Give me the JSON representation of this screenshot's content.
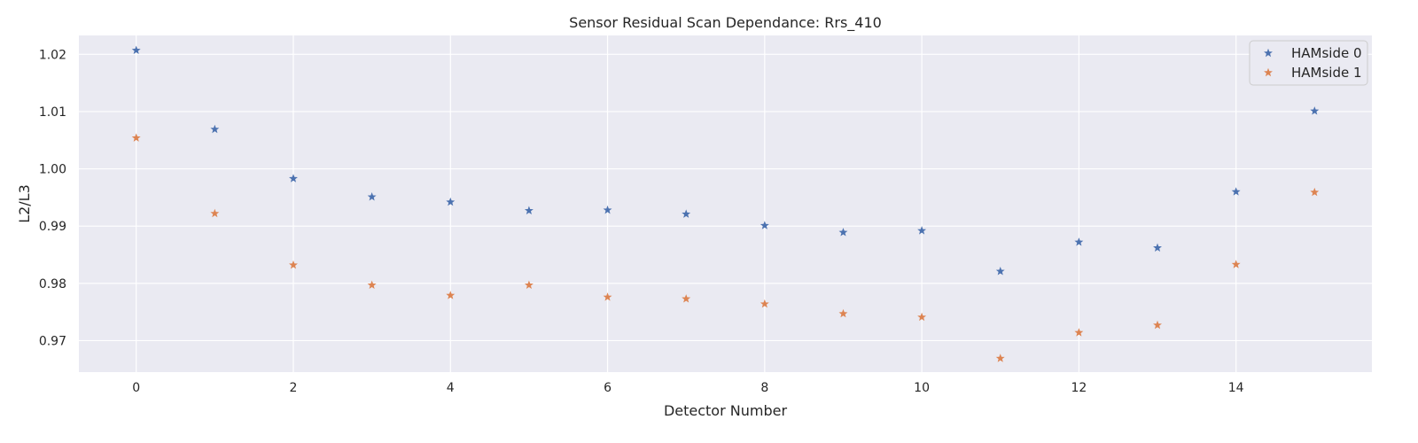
{
  "chart_data": {
    "type": "scatter",
    "title": "Sensor Residual Scan Dependance: Rrs_410",
    "xlabel": "Detector Number",
    "ylabel": "L2/L3",
    "xlim": [
      -0.73,
      15.73
    ],
    "ylim": [
      0.9645,
      1.0233
    ],
    "xticks": [
      0,
      2,
      4,
      6,
      8,
      10,
      12,
      14
    ],
    "yticks": [
      0.97,
      0.98,
      0.99,
      1.0,
      1.01,
      1.02
    ],
    "ytick_labels": [
      "0.97",
      "0.98",
      "0.99",
      "1.00",
      "1.01",
      "1.02"
    ],
    "grid": true,
    "marker": "star",
    "legend_position": "top-right",
    "x": [
      0,
      1,
      2,
      3,
      4,
      5,
      6,
      7,
      8,
      9,
      10,
      11,
      12,
      13,
      14,
      15
    ],
    "series": [
      {
        "name": "HAMside 0",
        "color": "#4c72b0",
        "values": [
          1.0207,
          1.0069,
          0.9983,
          0.9951,
          0.9942,
          0.9927,
          0.9928,
          0.9921,
          0.9901,
          0.9889,
          0.9892,
          0.9821,
          0.9872,
          0.9862,
          0.996,
          1.0101
        ]
      },
      {
        "name": "HAMside 1",
        "color": "#dd8452",
        "values": [
          1.0054,
          0.9922,
          0.9832,
          0.9797,
          0.9779,
          0.9797,
          0.9776,
          0.9773,
          0.9764,
          0.9747,
          0.9741,
          0.9669,
          0.9714,
          0.9727,
          0.9833,
          0.9959
        ]
      }
    ],
    "background_color": "#eaeaf2",
    "grid_color": "#ffffff"
  }
}
